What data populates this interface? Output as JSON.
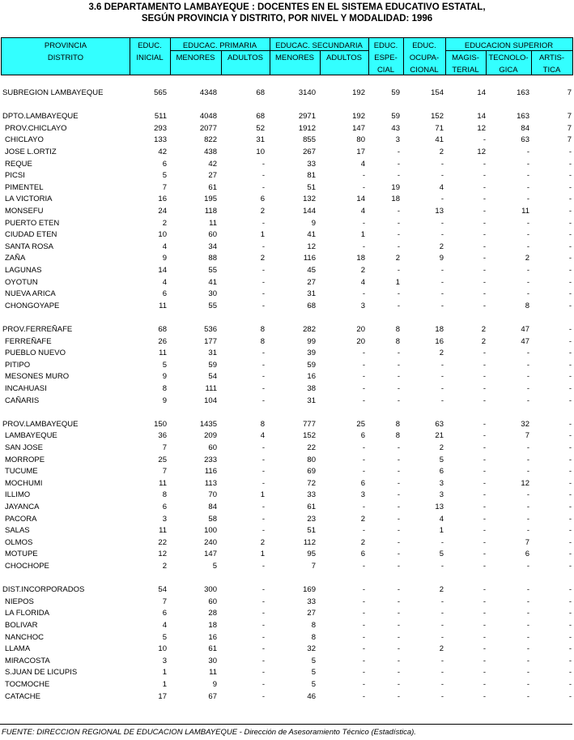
{
  "title": [
    "3.6  DEPARTAMENTO LAMBAYEQUE :  DOCENTES EN EL SISTEMA EDUCATIVO ESTATAL,",
    "SEGÚN PROVINCIA Y DISTRITO, POR NIVEL Y MODALIDAD: 1996"
  ],
  "header": {
    "provincia": [
      "PROVINCIA",
      "DISTRITO"
    ],
    "inicial": [
      "EDUC.",
      "INICIAL"
    ],
    "primaria": {
      "title": "EDUCAC. PRIMARIA",
      "sub": [
        "MENORES",
        "ADULTOS"
      ]
    },
    "secundaria": {
      "title": "EDUCAC. SECUNDARIA",
      "sub": [
        "MENORES",
        "ADULTOS"
      ]
    },
    "especial": [
      "EDUC.",
      "ESPE-",
      "CIAL"
    ],
    "ocupacional": [
      "EDUC.",
      "OCUPA-",
      "CIONAL"
    ],
    "superior": {
      "title": "EDUCACION SUPERIOR",
      "sub": [
        [
          "MAGIS-",
          "TERIAL"
        ],
        [
          "TECNOLO-",
          "GICA"
        ],
        [
          "ARTIS-",
          "TICA"
        ]
      ]
    }
  },
  "sections": [
    [
      [
        "SUBREGION LAMBAYEQUE",
        "565",
        "4348",
        "68",
        "3140",
        "192",
        "59",
        "154",
        "14",
        "163",
        "7"
      ]
    ],
    [
      [
        "DPTO.LAMBAYEQUE",
        "511",
        "4048",
        "68",
        "2971",
        "192",
        "59",
        "152",
        "14",
        "163",
        "7"
      ],
      [
        "PROV.CHICLAYO",
        "293",
        "2077",
        "52",
        "1912",
        "147",
        "43",
        "71",
        "12",
        "84",
        "7"
      ],
      [
        "CHICLAYO",
        "133",
        "822",
        "31",
        "855",
        "80",
        "3",
        "41",
        "-",
        "63",
        "7"
      ],
      [
        "JOSE L.ORTIZ",
        "42",
        "438",
        "10",
        "267",
        "17",
        "-",
        "2",
        "12",
        "-",
        "-"
      ],
      [
        "REQUE",
        "6",
        "42",
        "-",
        "33",
        "4",
        "-",
        "-",
        "-",
        "-",
        "-"
      ],
      [
        "PICSI",
        "5",
        "27",
        "-",
        "81",
        "-",
        "-",
        "-",
        "-",
        "-",
        "-"
      ],
      [
        "PIMENTEL",
        "7",
        "61",
        "-",
        "51",
        "-",
        "19",
        "4",
        "-",
        "-",
        "-"
      ],
      [
        "LA VICTORIA",
        "16",
        "195",
        "6",
        "132",
        "14",
        "18",
        "-",
        "-",
        "-",
        "-"
      ],
      [
        "MONSEFU",
        "24",
        "118",
        "2",
        "144",
        "4",
        "-",
        "13",
        "-",
        "11",
        "-"
      ],
      [
        "PUERTO ETEN",
        "2",
        "11",
        "-",
        "9",
        "-",
        "-",
        "-",
        "-",
        "-",
        "-"
      ],
      [
        "CIUDAD ETEN",
        "10",
        "60",
        "1",
        "41",
        "1",
        "-",
        "-",
        "-",
        "-",
        "-"
      ],
      [
        "SANTA ROSA",
        "4",
        "34",
        "-",
        "12",
        "-",
        "-",
        "2",
        "-",
        "-",
        "-"
      ],
      [
        "ZAÑA",
        "9",
        "88",
        "2",
        "116",
        "18",
        "2",
        "9",
        "-",
        "2",
        "-"
      ],
      [
        "LAGUNAS",
        "14",
        "55",
        "-",
        "45",
        "2",
        "-",
        "-",
        "-",
        "-",
        "-"
      ],
      [
        "OYOTUN",
        "4",
        "41",
        "-",
        "27",
        "4",
        "1",
        "-",
        "-",
        "-",
        "-"
      ],
      [
        "NUEVA ARICA",
        "6",
        "30",
        "-",
        "31",
        "-",
        "-",
        "-",
        "-",
        "-",
        "-"
      ],
      [
        "CHONGOYAPE",
        "11",
        "55",
        "-",
        "68",
        "3",
        "-",
        "-",
        "-",
        "8",
        "-"
      ]
    ],
    [
      [
        "PROV.FERREÑAFE",
        "68",
        "536",
        "8",
        "282",
        "20",
        "8",
        "18",
        "2",
        "47",
        "-"
      ],
      [
        "FERREÑAFE",
        "26",
        "177",
        "8",
        "99",
        "20",
        "8",
        "16",
        "2",
        "47",
        "-"
      ],
      [
        "PUEBLO NUEVO",
        "11",
        "31",
        "-",
        "39",
        "-",
        "-",
        "2",
        "-",
        "-",
        "-"
      ],
      [
        "PITIPO",
        "5",
        "59",
        "-",
        "59",
        "-",
        "-",
        "-",
        "-",
        "-",
        "-"
      ],
      [
        "MESONES MURO",
        "9",
        "54",
        "-",
        "16",
        "-",
        "-",
        "-",
        "-",
        "-",
        "-"
      ],
      [
        "INCAHUASI",
        "8",
        "111",
        "-",
        "38",
        "-",
        "-",
        "-",
        "-",
        "-",
        "-"
      ],
      [
        "CAÑARIS",
        "9",
        "104",
        "-",
        "31",
        "-",
        "-",
        "-",
        "-",
        "-",
        "-"
      ]
    ],
    [
      [
        "PROV.LAMBAYEQUE",
        "150",
        "1435",
        "8",
        "777",
        "25",
        "8",
        "63",
        "-",
        "32",
        "-"
      ],
      [
        "LAMBAYEQUE",
        "36",
        "209",
        "4",
        "152",
        "6",
        "8",
        "21",
        "-",
        "7",
        "-"
      ],
      [
        "SAN JOSE",
        "7",
        "60",
        "-",
        "22",
        "-",
        "-",
        "2",
        "-",
        "-",
        "-"
      ],
      [
        "MORROPE",
        "25",
        "233",
        "-",
        "80",
        "-",
        "-",
        "5",
        "-",
        "-",
        "-"
      ],
      [
        "TUCUME",
        "7",
        "116",
        "-",
        "69",
        "-",
        "-",
        "6",
        "-",
        "-",
        "-"
      ],
      [
        "MOCHUMI",
        "11",
        "113",
        "-",
        "72",
        "6",
        "-",
        "3",
        "-",
        "12",
        "-"
      ],
      [
        "ILLIMO",
        "8",
        "70",
        "1",
        "33",
        "3",
        "-",
        "3",
        "-",
        "-",
        "-"
      ],
      [
        "JAYANCA",
        "6",
        "84",
        "-",
        "61",
        "-",
        "-",
        "13",
        "-",
        "-",
        "-"
      ],
      [
        "PACORA",
        "3",
        "58",
        "-",
        "23",
        "2",
        "-",
        "4",
        "-",
        "-",
        "-"
      ],
      [
        "SALAS",
        "11",
        "100",
        "-",
        "51",
        "-",
        "-",
        "1",
        "-",
        "-",
        "-"
      ],
      [
        "OLMOS",
        "22",
        "240",
        "2",
        "112",
        "2",
        "-",
        "-",
        "-",
        "7",
        "-"
      ],
      [
        "MOTUPE",
        "12",
        "147",
        "1",
        "95",
        "6",
        "-",
        "5",
        "-",
        "6",
        "-"
      ],
      [
        "CHOCHOPE",
        "2",
        "5",
        "-",
        "7",
        "-",
        "-",
        "-",
        "-",
        "-",
        "-"
      ]
    ],
    [
      [
        "DIST.INCORPORADOS",
        "54",
        "300",
        "-",
        "169",
        "-",
        "-",
        "2",
        "-",
        "-",
        "-"
      ],
      [
        "NIEPOS",
        "7",
        "60",
        "-",
        "33",
        "-",
        "-",
        "-",
        "-",
        "-",
        "-"
      ],
      [
        "LA FLORIDA",
        "6",
        "28",
        "-",
        "27",
        "-",
        "-",
        "-",
        "-",
        "-",
        "-"
      ],
      [
        "BOLIVAR",
        "4",
        "18",
        "-",
        "8",
        "-",
        "-",
        "-",
        "-",
        "-",
        "-"
      ],
      [
        "NANCHOC",
        "5",
        "16",
        "-",
        "8",
        "-",
        "-",
        "-",
        "-",
        "-",
        "-"
      ],
      [
        "LLAMA",
        "10",
        "61",
        "-",
        "32",
        "-",
        "-",
        "2",
        "-",
        "-",
        "-"
      ],
      [
        "MIRACOSTA",
        "3",
        "30",
        "-",
        "5",
        "-",
        "-",
        "-",
        "-",
        "-",
        "-"
      ],
      [
        "S.JUAN DE LICUPIS",
        "1",
        "11",
        "-",
        "5",
        "-",
        "-",
        "-",
        "-",
        "-",
        "-"
      ],
      [
        "TOCMOCHE",
        "1",
        "9",
        "-",
        "5",
        "-",
        "-",
        "-",
        "-",
        "-",
        "-"
      ],
      [
        "CATACHE",
        "17",
        "67",
        "-",
        "46",
        "-",
        "-",
        "-",
        "-",
        "-",
        "-"
      ]
    ]
  ],
  "footer": "FUENTE: DIRECCION REGIONAL DE EDUCACION LAMBAYEQUE - Dirección de Asesoramiento Técnico (Estadística)."
}
